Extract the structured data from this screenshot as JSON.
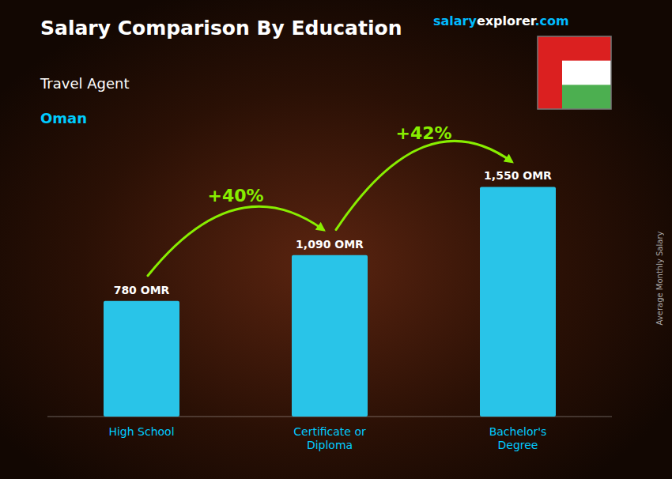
{
  "chart_data": {
    "type": "bar",
    "title": "Salary Comparison By Education",
    "subtitle": [
      "Travel Agent",
      "Oman"
    ],
    "ylabel": "Average Monthly Salary",
    "categories": [
      "High School",
      "Certificate or\nDiploma",
      "Bachelor's\nDegree"
    ],
    "values": [
      780,
      1090,
      1550
    ],
    "value_labels": [
      "780 OMR",
      "1,090 OMR",
      "1,550 OMR"
    ],
    "data_labels": true,
    "color": "#29c4e8",
    "ylim": [
      0,
      2000
    ],
    "tick_labels": false,
    "grid": false,
    "annotations": [
      "+40%",
      "+42%",
      "salaryexplorer.com"
    ]
  }
}
